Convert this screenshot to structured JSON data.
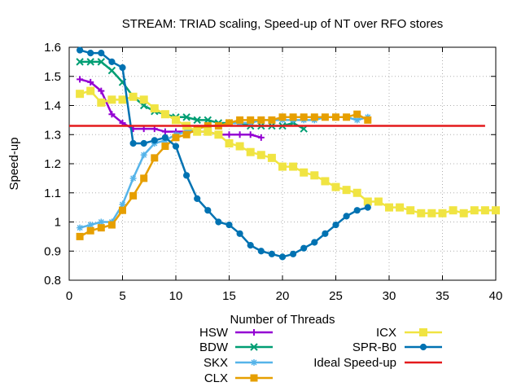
{
  "chart_data": {
    "type": "line",
    "title": "STREAM: TRIAD scaling, Speed-up of NT over RFO stores",
    "xlabel": "Number of Threads",
    "ylabel": "Speed-up",
    "xlim": [
      0,
      40
    ],
    "ylim": [
      0.8,
      1.6
    ],
    "xticks": [
      0,
      5,
      10,
      15,
      20,
      25,
      30,
      35,
      40
    ],
    "yticks": [
      0.8,
      0.9,
      1,
      1.1,
      1.2,
      1.3,
      1.4,
      1.5,
      1.6
    ],
    "xtick_labels": [
      "0",
      "5",
      "10",
      "15",
      "20",
      "25",
      "30",
      "35",
      "40"
    ],
    "ytick_labels": [
      "0.8",
      "0.9",
      "1",
      "1.1",
      "1.2",
      "1.3",
      "1.4",
      "1.5",
      "1.6"
    ],
    "grid": true,
    "legend_position": "bottom",
    "series": [
      {
        "name": "HSW",
        "color": "#9400d3",
        "marker": "plus",
        "x": [
          1,
          2,
          3,
          4,
          5,
          6,
          7,
          8,
          9,
          10,
          11,
          12,
          13,
          14,
          15,
          16,
          17,
          18
        ],
        "values": [
          1.49,
          1.48,
          1.45,
          1.37,
          1.34,
          1.32,
          1.32,
          1.32,
          1.31,
          1.31,
          1.31,
          1.31,
          1.31,
          1.3,
          1.3,
          1.3,
          1.3,
          1.29
        ]
      },
      {
        "name": "BDW",
        "color": "#009e73",
        "marker": "x",
        "x": [
          1,
          2,
          3,
          4,
          5,
          6,
          7,
          8,
          9,
          10,
          11,
          12,
          13,
          14,
          15,
          16,
          17,
          18,
          19,
          20,
          21,
          22
        ],
        "values": [
          1.55,
          1.55,
          1.55,
          1.52,
          1.48,
          1.43,
          1.4,
          1.38,
          1.37,
          1.36,
          1.36,
          1.35,
          1.35,
          1.34,
          1.34,
          1.34,
          1.33,
          1.33,
          1.33,
          1.33,
          1.34,
          1.32
        ]
      },
      {
        "name": "SKX",
        "color": "#56b4e9",
        "marker": "star",
        "x": [
          1,
          2,
          3,
          4,
          5,
          6,
          7,
          8,
          9,
          10,
          11,
          12,
          13,
          14,
          15,
          16,
          17,
          18,
          19,
          20,
          21,
          22,
          23,
          24,
          25,
          26,
          27,
          28
        ],
        "values": [
          0.98,
          0.99,
          1.0,
          1.0,
          1.06,
          1.15,
          1.23,
          1.27,
          1.28,
          1.3,
          1.31,
          1.32,
          1.33,
          1.33,
          1.34,
          1.34,
          1.34,
          1.35,
          1.35,
          1.35,
          1.35,
          1.35,
          1.35,
          1.36,
          1.36,
          1.36,
          1.35,
          1.36
        ]
      },
      {
        "name": "CLX",
        "color": "#e69f00",
        "marker": "square",
        "x": [
          1,
          2,
          3,
          4,
          5,
          6,
          7,
          8,
          9,
          10,
          11,
          12,
          13,
          14,
          15,
          16,
          17,
          18,
          19,
          20,
          21,
          22,
          23,
          24,
          25,
          26,
          27,
          28
        ],
        "values": [
          0.95,
          0.97,
          0.98,
          0.99,
          1.04,
          1.09,
          1.15,
          1.22,
          1.26,
          1.29,
          1.3,
          1.32,
          1.33,
          1.33,
          1.34,
          1.35,
          1.35,
          1.35,
          1.35,
          1.36,
          1.36,
          1.36,
          1.36,
          1.36,
          1.36,
          1.36,
          1.37,
          1.35
        ]
      },
      {
        "name": "ICX",
        "color": "#f0e442",
        "marker": "square-filled",
        "x": [
          1,
          2,
          3,
          4,
          5,
          6,
          7,
          8,
          9,
          10,
          11,
          12,
          13,
          14,
          15,
          16,
          17,
          18,
          19,
          20,
          21,
          22,
          23,
          24,
          25,
          26,
          27,
          28,
          29,
          30,
          31,
          32,
          33,
          34,
          35,
          36,
          37,
          38,
          39,
          40
        ],
        "values": [
          1.44,
          1.45,
          1.41,
          1.42,
          1.42,
          1.43,
          1.42,
          1.39,
          1.37,
          1.35,
          1.33,
          1.31,
          1.31,
          1.3,
          1.27,
          1.26,
          1.24,
          1.23,
          1.22,
          1.19,
          1.19,
          1.17,
          1.16,
          1.14,
          1.12,
          1.11,
          1.1,
          1.07,
          1.07,
          1.05,
          1.05,
          1.04,
          1.03,
          1.03,
          1.03,
          1.04,
          1.03,
          1.04,
          1.04,
          1.04
        ]
      },
      {
        "name": "SPR-B0",
        "color": "#0072b2",
        "marker": "circle",
        "x": [
          1,
          2,
          3,
          4,
          5,
          6,
          7,
          8,
          9,
          10,
          11,
          12,
          13,
          14,
          15,
          16,
          17,
          18,
          19,
          20,
          21,
          22,
          23,
          24,
          25,
          26,
          27,
          28
        ],
        "values": [
          1.59,
          1.58,
          1.58,
          1.55,
          1.53,
          1.27,
          1.27,
          1.28,
          1.29,
          1.26,
          1.16,
          1.08,
          1.04,
          1.0,
          0.99,
          0.96,
          0.92,
          0.9,
          0.89,
          0.88,
          0.89,
          0.91,
          0.93,
          0.96,
          0.99,
          1.02,
          1.04,
          1.05
        ]
      },
      {
        "name": "Ideal Speed-up",
        "color": "#e41a1c",
        "marker": "none",
        "x": [
          0,
          39
        ],
        "values": [
          1.33,
          1.33
        ]
      }
    ]
  }
}
